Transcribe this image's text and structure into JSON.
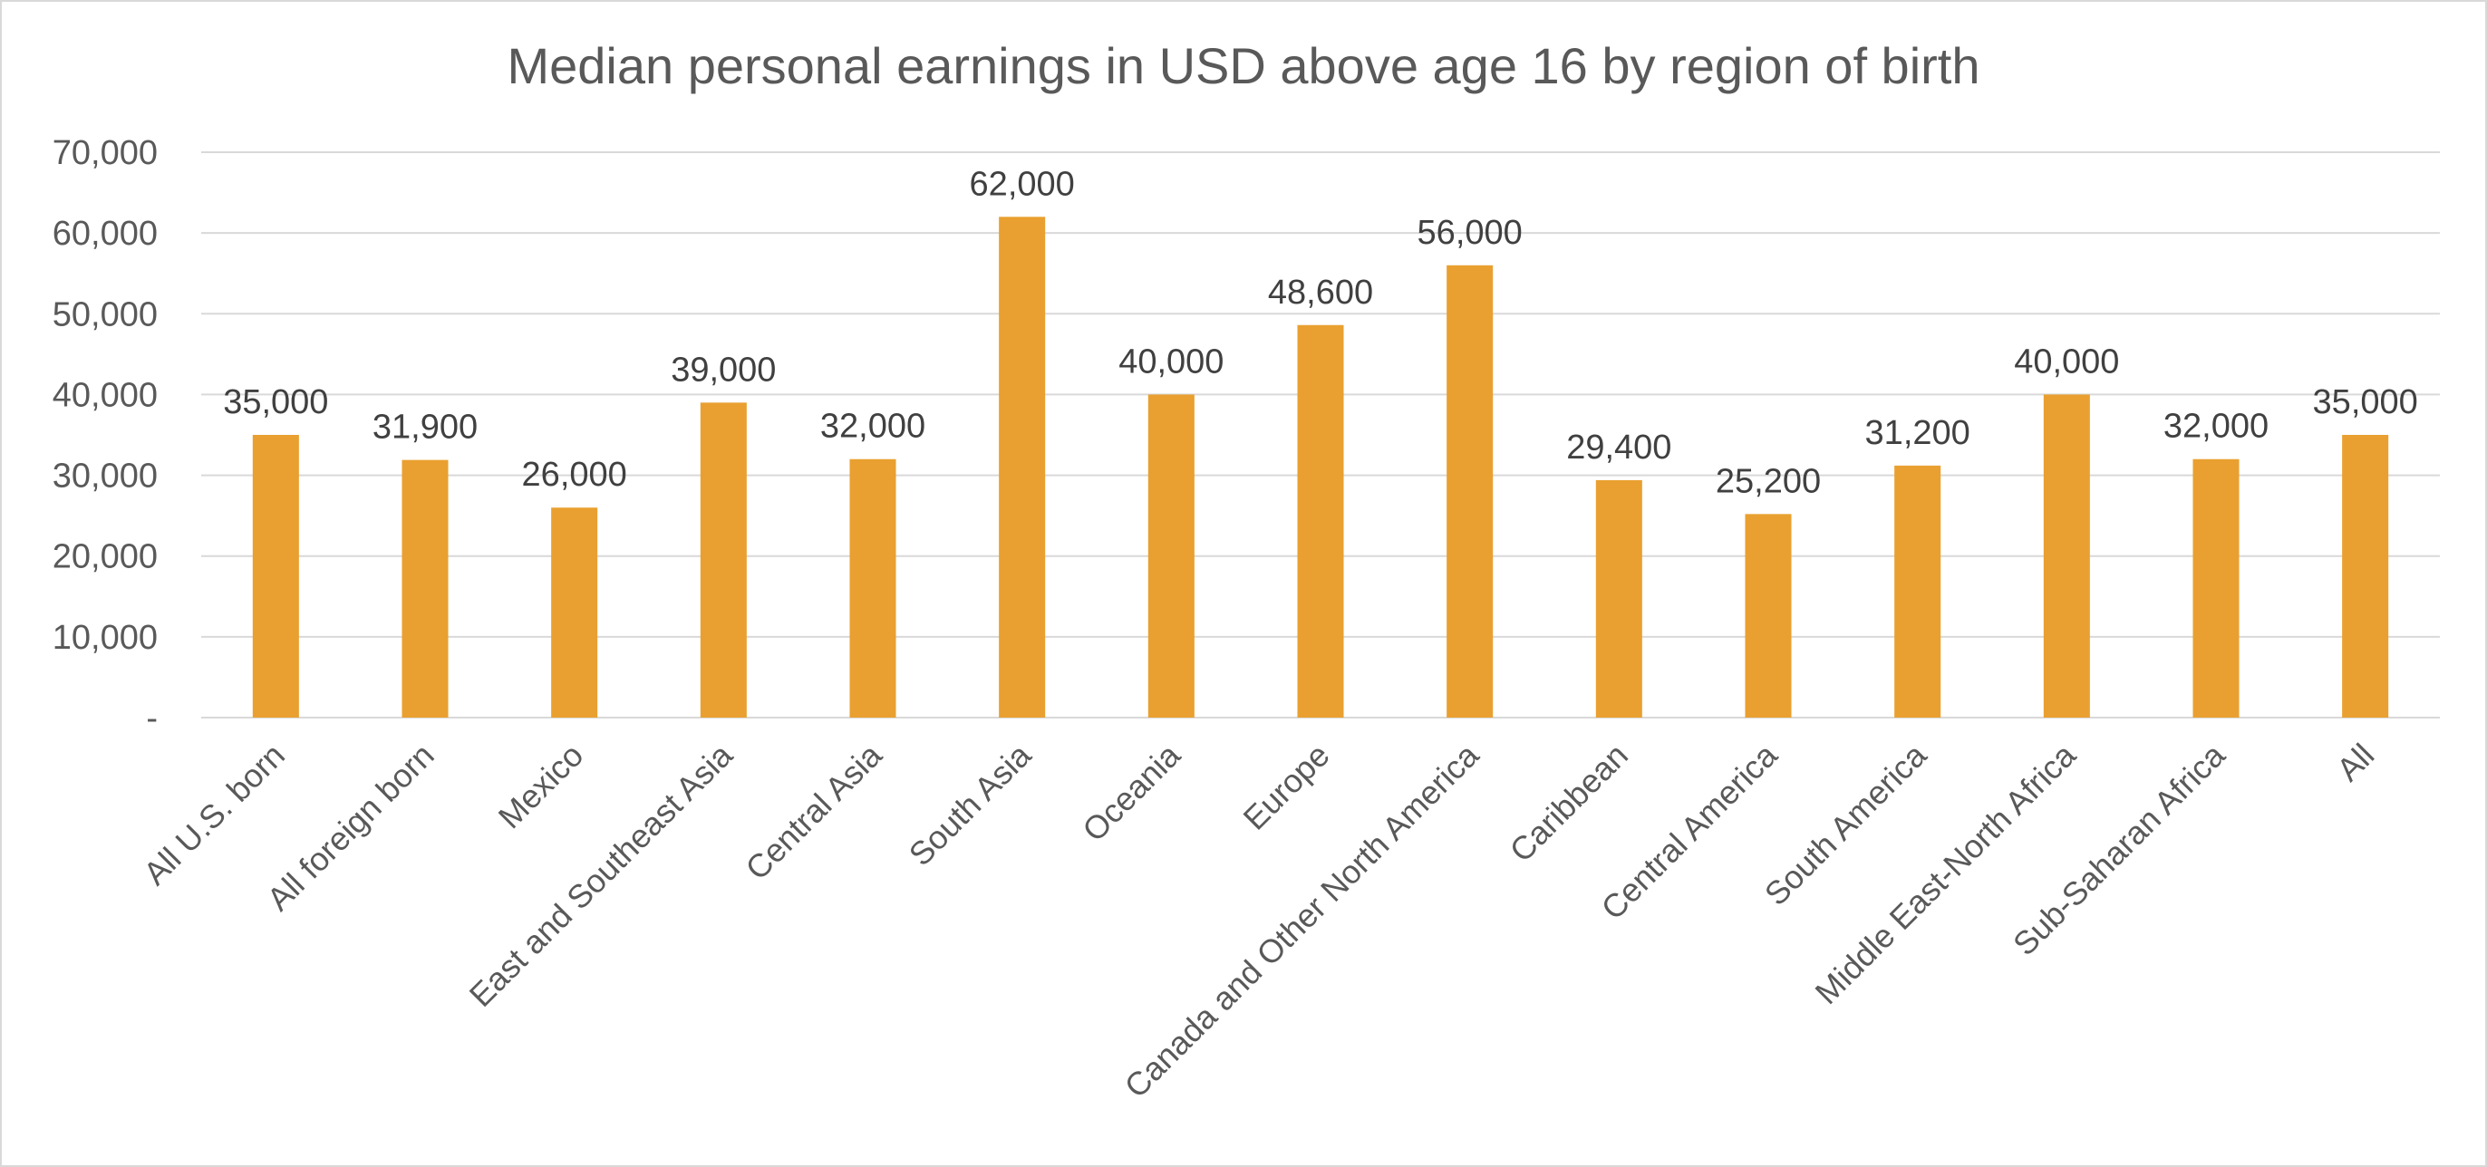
{
  "chart_data": {
    "type": "bar",
    "title": "Median personal earnings in USD above age 16 by region of birth",
    "xlabel": "",
    "ylabel": "",
    "categories": [
      "All U.S. born",
      "All foreign born",
      "Mexico",
      "East and Southeast Asia",
      "Central Asia",
      "South Asia",
      "Oceania",
      "Europe",
      "Canada and Other North America",
      "Caribbean",
      "Central America",
      "South America",
      "Middle East-North Africa",
      "Sub-Saharan Africa",
      "All"
    ],
    "values": [
      35000,
      31900,
      26000,
      39000,
      32000,
      62000,
      40000,
      48600,
      56000,
      29400,
      25200,
      31200,
      40000,
      32000,
      35000
    ],
    "data_labels": [
      "35,000",
      "31,900",
      "26,000",
      "39,000",
      "32,000",
      "62,000",
      "40,000",
      "48,600",
      "56,000",
      "29,400",
      "25,200",
      "31,200",
      "40,000",
      "32,000",
      "35,000"
    ],
    "ylim": [
      0,
      70000
    ],
    "y_ticks": [
      0,
      10000,
      20000,
      30000,
      40000,
      50000,
      60000,
      70000
    ],
    "y_tick_labels": [
      "-",
      "10,000",
      "20,000",
      "30,000",
      "40,000",
      "50,000",
      "60,000",
      "70,000"
    ],
    "grid": true,
    "legend": "none",
    "bar_color": "#E9A030"
  }
}
